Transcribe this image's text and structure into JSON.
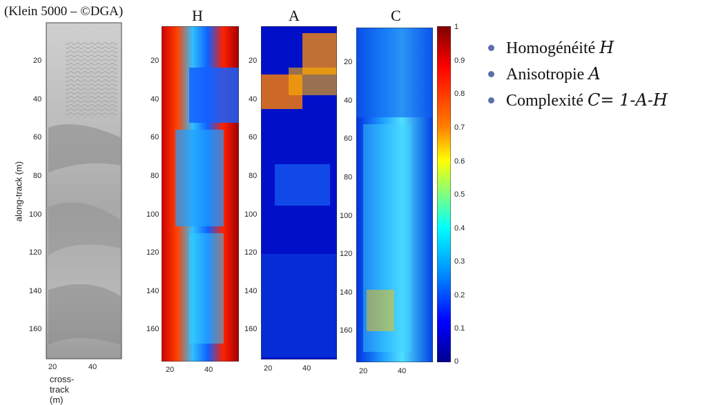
{
  "caption": "(Klein 5000 – ©DGA)",
  "sonar_panel": {
    "y_ticks": [
      "20",
      "40",
      "60",
      "80",
      "100",
      "120",
      "140",
      "160"
    ],
    "x_ticks": [
      "20",
      "40"
    ],
    "xlabel": "cross-track (m)",
    "ylabel": "along-track (m)"
  },
  "map_panels": [
    {
      "title": "H",
      "y_ticks": [
        "20",
        "40",
        "60",
        "80",
        "100",
        "120",
        "140",
        "160"
      ],
      "x_ticks": [
        "20",
        "40"
      ]
    },
    {
      "title": "A",
      "y_ticks": [
        "20",
        "40",
        "60",
        "80",
        "100",
        "120",
        "140",
        "160"
      ],
      "x_ticks": [
        "20",
        "40"
      ]
    },
    {
      "title": "C",
      "y_ticks": [
        "20",
        "40",
        "60",
        "80",
        "100",
        "120",
        "140",
        "160"
      ],
      "x_ticks": [
        "20",
        "40"
      ]
    }
  ],
  "colorbar": {
    "ticks": [
      "1",
      "0.9",
      "0.8",
      "0.7",
      "0.6",
      "0.5",
      "0.4",
      "0.3",
      "0.2",
      "0.1",
      "0"
    ],
    "colors": [
      "#7f0000",
      "#ff0000",
      "#ff8000",
      "#ffff00",
      "#80ff80",
      "#00ffff",
      "#0080ff",
      "#0000ff",
      "#00008f"
    ]
  },
  "bullets": [
    {
      "text": "Homogénéité ",
      "math": "H"
    },
    {
      "text": "Anisotropie ",
      "math": "A"
    },
    {
      "text": "Complexité ",
      "math": "C= 1-A-H"
    }
  ]
}
